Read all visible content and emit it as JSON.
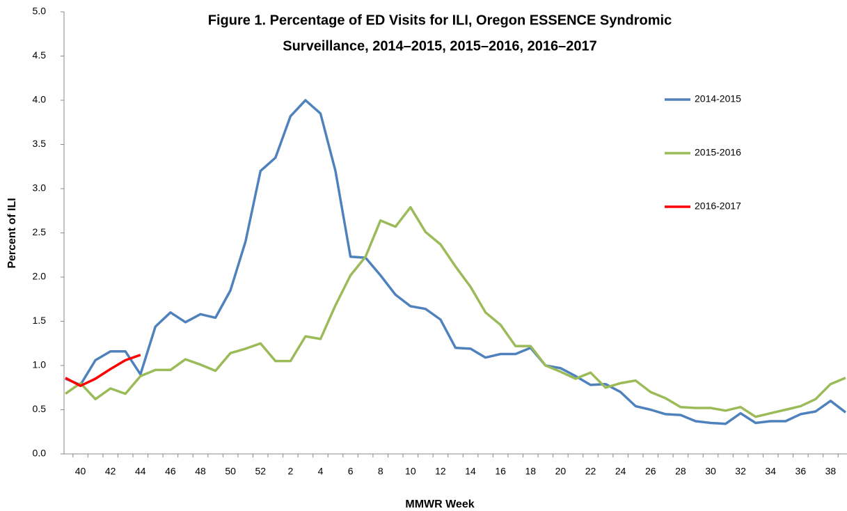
{
  "chart_data": {
    "type": "line",
    "title": [
      "Figure 1. Percentage of ED Visits for ILI, Oregon ESSENCE Syndromic",
      "Surveillance, 2014–2015, 2015–2016, 2016–2017"
    ],
    "x_label": "MMWR Week",
    "y_label": "Percent of ILI",
    "categories": [
      null,
      "40",
      null,
      "42",
      null,
      "44",
      null,
      "46",
      null,
      "48",
      null,
      "50",
      null,
      "52",
      null,
      "2",
      null,
      "4",
      null,
      "6",
      null,
      "8",
      null,
      "10",
      null,
      "12",
      null,
      "14",
      null,
      "16",
      null,
      "18",
      null,
      "20",
      null,
      "22",
      null,
      "24",
      null,
      "26",
      null,
      "28",
      null,
      "30",
      null,
      "32",
      null,
      "34",
      null,
      "36",
      null,
      "38",
      null
    ],
    "series": [
      {
        "name": "2014-2015",
        "color": "#4f81bd",
        "values": [
          0.85,
          0.78,
          1.06,
          1.16,
          1.16,
          0.9,
          1.44,
          1.6,
          1.49,
          1.58,
          1.54,
          1.85,
          2.4,
          3.2,
          3.35,
          3.82,
          4.0,
          3.85,
          3.2,
          2.23,
          2.22,
          2.02,
          1.8,
          1.67,
          1.64,
          1.52,
          1.2,
          1.19,
          1.09,
          1.13,
          1.13,
          1.2,
          1.0,
          0.97,
          0.88,
          0.78,
          0.79,
          0.7,
          0.54,
          0.5,
          0.45,
          0.44,
          0.37,
          0.35,
          0.34,
          0.46,
          0.35,
          0.37,
          0.37,
          0.45,
          0.48,
          0.6,
          0.47
        ]
      },
      {
        "name": "2015-2016",
        "color": "#9bbb59",
        "values": [
          0.68,
          0.8,
          0.62,
          0.74,
          0.68,
          0.88,
          0.95,
          0.95,
          1.07,
          1.01,
          0.94,
          1.14,
          1.19,
          1.25,
          1.05,
          1.05,
          1.33,
          1.3,
          1.68,
          2.02,
          2.23,
          2.64,
          2.57,
          2.79,
          2.51,
          2.37,
          2.12,
          1.89,
          1.6,
          1.46,
          1.22,
          1.22,
          1.0,
          0.93,
          0.85,
          0.92,
          0.75,
          0.8,
          0.83,
          0.7,
          0.63,
          0.53,
          0.52,
          0.52,
          0.49,
          0.53,
          0.42,
          0.46,
          0.5,
          0.54,
          0.62,
          0.79,
          0.86
        ]
      },
      {
        "name": "2016-2017",
        "color": "#ff0000",
        "values": [
          0.86,
          0.77,
          0.85,
          0.96,
          1.06,
          1.12,
          null,
          null,
          null,
          null,
          null,
          null,
          null,
          null,
          null,
          null,
          null,
          null,
          null,
          null,
          null,
          null,
          null,
          null,
          null,
          null,
          null,
          null,
          null,
          null,
          null,
          null,
          null,
          null,
          null,
          null,
          null,
          null,
          null,
          null,
          null,
          null,
          null,
          null,
          null,
          null,
          null,
          null,
          null,
          null,
          null,
          null,
          null
        ]
      }
    ],
    "ylim": [
      0,
      5
    ],
    "yticks": [
      {
        "value": 0,
        "label": "0.0"
      },
      0.5,
      {
        "value": 1,
        "label": "1.0"
      },
      1.5,
      {
        "value": 2,
        "label": "2.0"
      },
      2.5,
      {
        "value": 3,
        "label": "3.0"
      },
      3.5,
      {
        "value": 4,
        "label": "4.0"
      },
      4.5,
      {
        "value": 5,
        "label": "5.0"
      }
    ],
    "grid": false,
    "legend": "right"
  }
}
